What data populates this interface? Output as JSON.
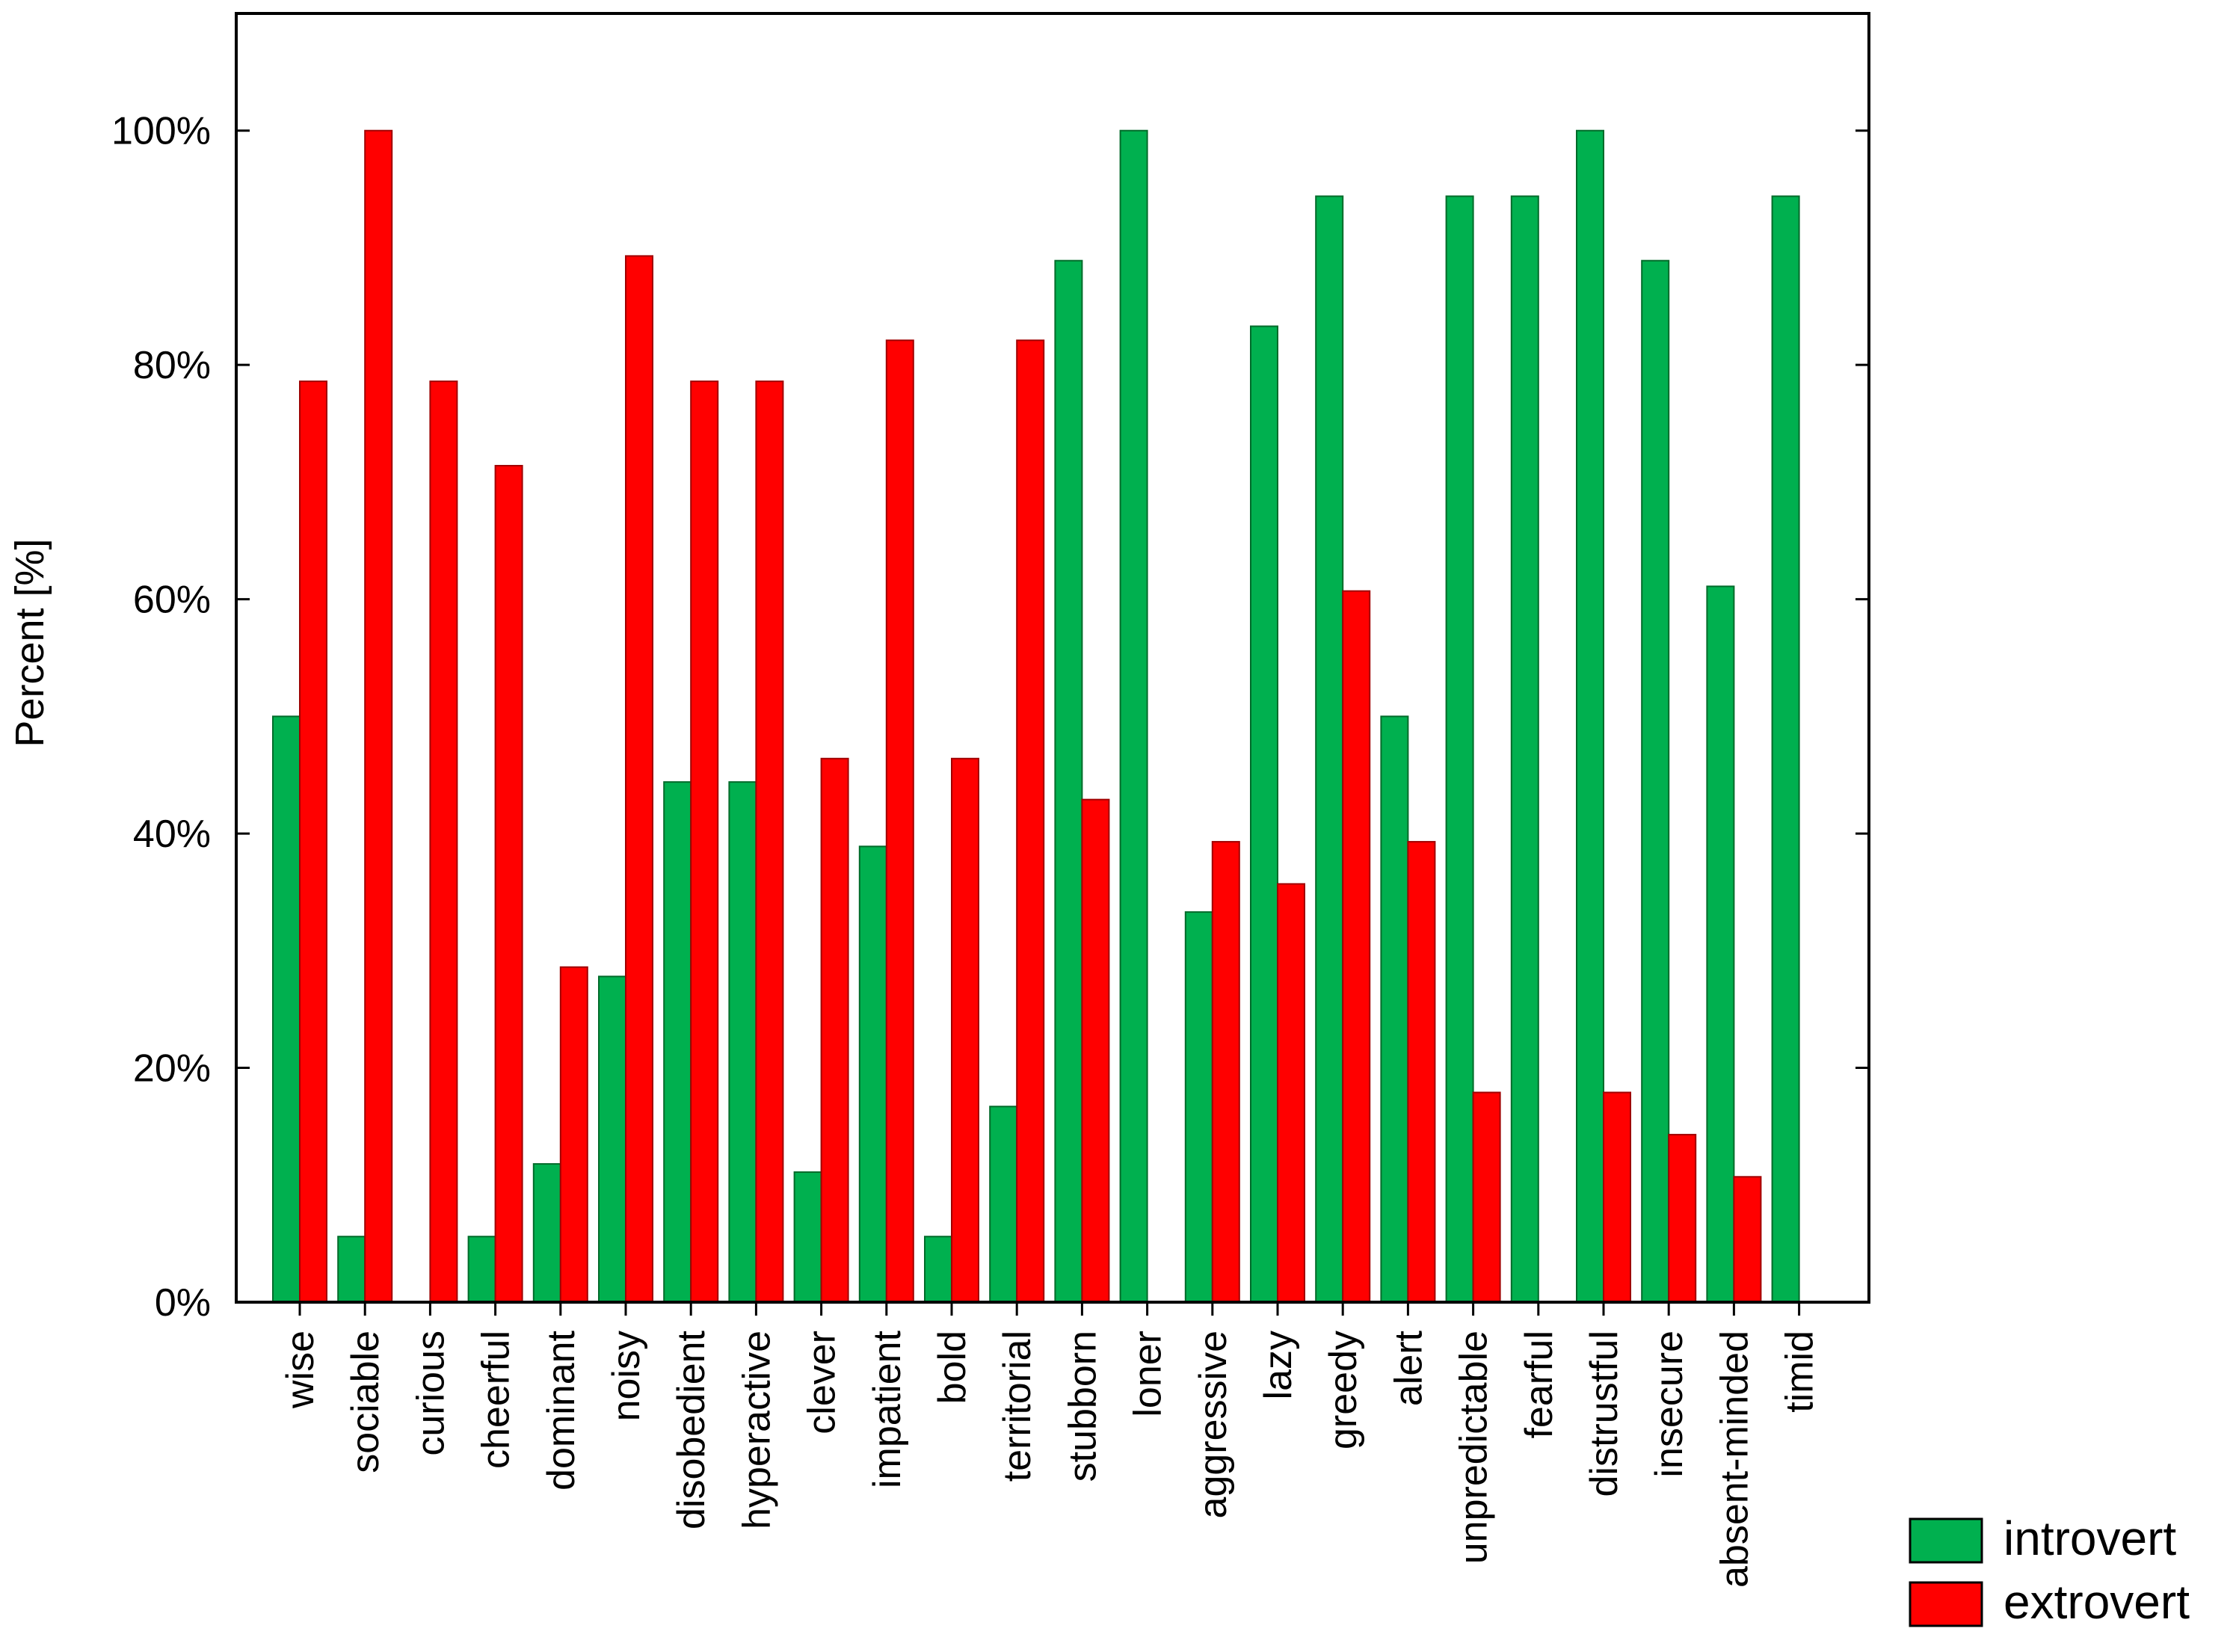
{
  "chart_data": {
    "type": "bar",
    "title": "",
    "xlabel": "",
    "ylabel": "Percent [%]",
    "ylim": [
      0,
      110
    ],
    "yticks": [
      0,
      20,
      40,
      60,
      80,
      100
    ],
    "ytick_labels": [
      "0%",
      "20%",
      "40%",
      "60%",
      "80%",
      "100%"
    ],
    "legend_position": "bottom-right",
    "categories": [
      "wise",
      "sociable",
      "curious",
      "cheerful",
      "dominant",
      "noisy",
      "disobedient",
      "hyperactive",
      "clever",
      "impatient",
      "bold",
      "territorial",
      "stubborn",
      "loner",
      "aggressive",
      "lazy",
      "greedy",
      "alert",
      "unpredictable",
      "fearful",
      "distrustful",
      "insecure",
      "absent-minded",
      "timid"
    ],
    "series": [
      {
        "name": "introvert",
        "color": "#00b04f",
        "values": [
          50,
          5.6,
          0,
          5.6,
          11.8,
          27.8,
          44.4,
          44.4,
          11.1,
          38.9,
          5.6,
          16.7,
          88.9,
          100,
          33.3,
          83.3,
          94.4,
          50,
          94.4,
          94.4,
          100,
          88.9,
          61.1,
          94.4
        ]
      },
      {
        "name": "extrovert",
        "color": "#ff0000",
        "values": [
          78.6,
          100,
          78.6,
          71.4,
          28.6,
          89.3,
          78.6,
          78.6,
          46.4,
          82.1,
          46.4,
          82.1,
          42.9,
          0,
          39.3,
          35.7,
          60.7,
          39.3,
          17.9,
          0,
          17.9,
          14.3,
          10.7,
          0
        ]
      }
    ]
  }
}
